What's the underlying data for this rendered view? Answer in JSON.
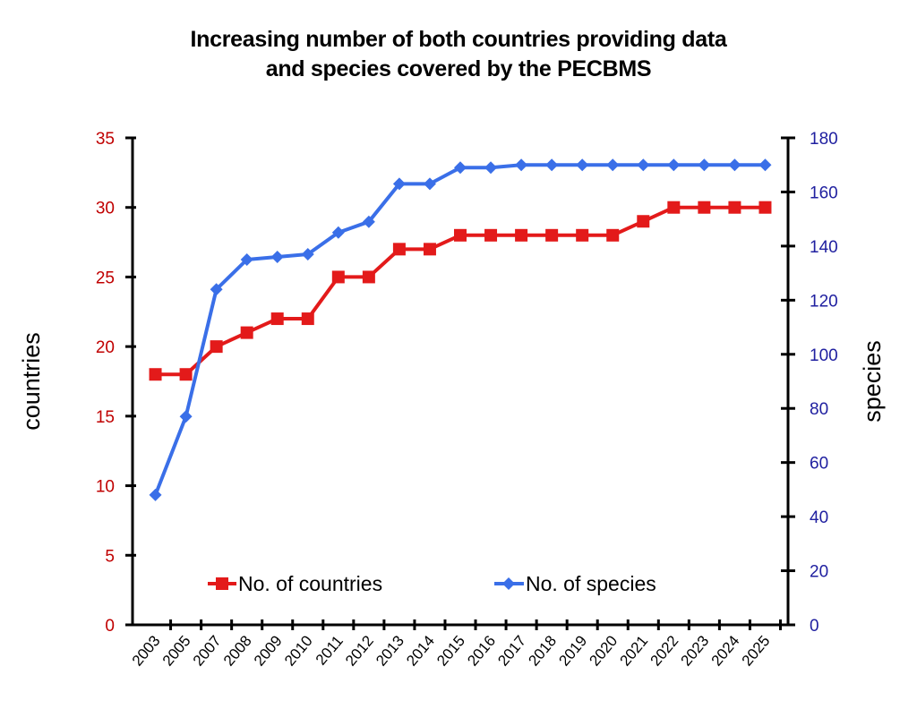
{
  "chart_data": {
    "type": "line",
    "title": "Increasing number of both countries providing data and species covered by the PECBMS",
    "title_lines": [
      "Increasing number of both countries providing data",
      "and species covered by the PECBMS"
    ],
    "x": [
      "2003",
      "2005",
      "2007",
      "2008",
      "2009",
      "2010",
      "2011",
      "2012",
      "2013",
      "2014",
      "2015",
      "2016",
      "2017",
      "2018",
      "2019",
      "2020",
      "2021",
      "2022",
      "2023",
      "2024",
      "2025"
    ],
    "xlabel": "",
    "y_left": {
      "label": "countries",
      "ylim": [
        0,
        35
      ],
      "ticks": [
        0,
        5,
        10,
        15,
        20,
        25,
        30,
        35
      ],
      "color": "#c00000"
    },
    "y_right": {
      "label": "species",
      "ylim": [
        0,
        180
      ],
      "ticks": [
        0,
        20,
        40,
        60,
        80,
        100,
        120,
        140,
        160,
        180
      ],
      "color": "#2020a0"
    },
    "series": [
      {
        "name": "No. of countries",
        "axis": "left",
        "color": "#e31a1a",
        "marker": "square",
        "values": [
          18,
          18,
          20,
          21,
          22,
          22,
          25,
          25,
          27,
          27,
          28,
          28,
          28,
          28,
          28,
          28,
          29,
          30,
          30,
          30,
          30
        ]
      },
      {
        "name": "No. of species",
        "axis": "right",
        "color": "#3a6fe8",
        "marker": "diamond",
        "values": [
          48,
          77,
          124,
          135,
          136,
          137,
          145,
          149,
          163,
          163,
          169,
          169,
          170,
          170,
          170,
          170,
          170,
          170,
          170,
          170,
          170
        ]
      }
    ],
    "legend": {
      "placement": "bottom-inside",
      "entries": [
        "No. of countries",
        "No. of species"
      ]
    },
    "grid": false
  }
}
